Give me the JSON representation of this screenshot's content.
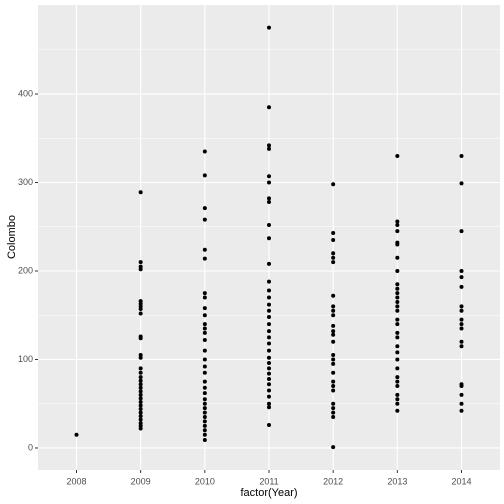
{
  "chart_data": {
    "type": "strip",
    "x_label": "factor(Year)",
    "y_label": "Colombo",
    "categories": [
      "2008",
      "2009",
      "2010",
      "2011",
      "2012",
      "2013",
      "2014"
    ],
    "values": [
      [
        15
      ],
      [
        289,
        210,
        205,
        202,
        166,
        163,
        160,
        157,
        152,
        126,
        124,
        105,
        102,
        90,
        85,
        80,
        76,
        72,
        68,
        64,
        60,
        56,
        52,
        48,
        44,
        40,
        36,
        32,
        28,
        25,
        22
      ],
      [
        335,
        308,
        271,
        258,
        224,
        214,
        175,
        170,
        158,
        150,
        140,
        135,
        130,
        122,
        110,
        100,
        92,
        85,
        75,
        68,
        62,
        55,
        50,
        45,
        40,
        35,
        30,
        25,
        20,
        15,
        9
      ],
      [
        475,
        385,
        342,
        338,
        307,
        300,
        282,
        278,
        252,
        237,
        208,
        188,
        178,
        170,
        162,
        155,
        148,
        140,
        132,
        125,
        118,
        110,
        102,
        96,
        90,
        84,
        78,
        72,
        65,
        58,
        50,
        46,
        26
      ],
      [
        298,
        243,
        235,
        220,
        215,
        210,
        172,
        160,
        155,
        150,
        138,
        132,
        128,
        120,
        105,
        100,
        95,
        85,
        75,
        70,
        65,
        50,
        45,
        40,
        35,
        1
      ],
      [
        330,
        256,
        252,
        245,
        232,
        230,
        215,
        200,
        185,
        180,
        175,
        170,
        165,
        160,
        155,
        145,
        140,
        130,
        125,
        115,
        108,
        100,
        90,
        80,
        75,
        70,
        60,
        55,
        50,
        42
      ],
      [
        330,
        299,
        245,
        200,
        193,
        182,
        160,
        155,
        145,
        140,
        135,
        120,
        115,
        72,
        70,
        60,
        50,
        42
      ]
    ],
    "color": "#000000",
    "ylim": [
      -24.9,
      500.6
    ],
    "yticks": [
      0,
      100,
      200,
      300,
      400
    ],
    "yminorticks": [
      50,
      150,
      250,
      350,
      450
    ],
    "grid": true
  }
}
